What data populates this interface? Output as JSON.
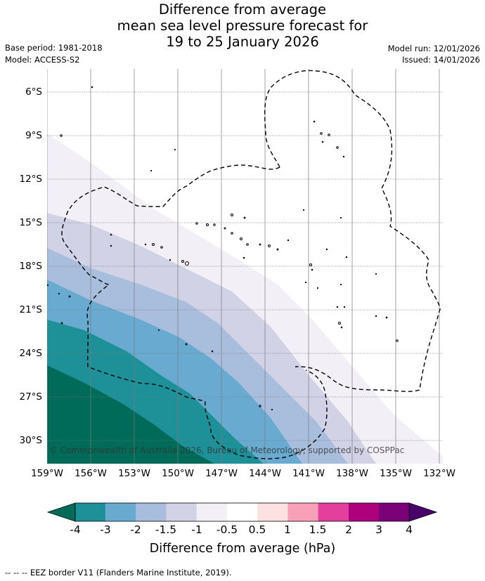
{
  "title": {
    "line1": "Difference from average",
    "line2": "mean sea level pressure forecast for",
    "line3": "19 to 25 January 2026"
  },
  "meta": {
    "base_period": "Base period: 1981-2018",
    "model": "Model: ACCESS-S2",
    "model_run": "Model run: 12/01/2026",
    "issued": "Issued: 14/01/2026"
  },
  "axes": {
    "lat_labels": [
      "6°S",
      "9°S",
      "12°S",
      "15°S",
      "18°S",
      "21°S",
      "24°S",
      "27°S",
      "30°S"
    ],
    "lon_labels": [
      "159°W",
      "156°W",
      "153°W",
      "150°W",
      "147°W",
      "144°W",
      "141°W",
      "138°W",
      "135°W",
      "132°W"
    ]
  },
  "copyright": "© Commonwealth of Australia 2026, Bureau of Meteorology, supported by COSPPac",
  "colorbar": {
    "ticks": [
      "-4",
      "-3",
      "-2",
      "-1.5",
      "-1",
      "-0.5",
      "0.5",
      "1",
      "1.5",
      "2",
      "3",
      "4"
    ],
    "label": "Difference from average (hPa)",
    "colors": [
      "#006b58",
      "#1e9098",
      "#68aad0",
      "#a9bddd",
      "#d1d2e6",
      "#f3eff6",
      "#ffffff",
      "#fde0e0",
      "#f99fb8",
      "#e33f9c",
      "#ae017e",
      "#7a0177",
      "#49006a"
    ]
  },
  "legend_note": "--  --  -- EEZ border V11 (Flanders Marine Institute, 2019)."
}
